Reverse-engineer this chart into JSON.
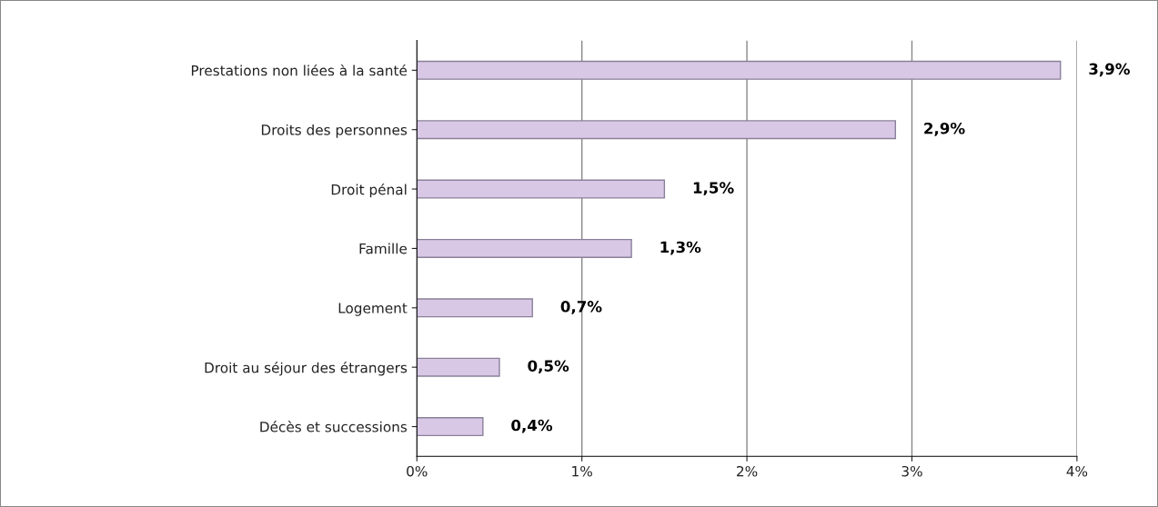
{
  "chart_data": {
    "type": "bar",
    "orientation": "horizontal",
    "categories": [
      "Prestations non liées à la santé",
      "Droits des personnes",
      "Droit pénal",
      "Famille",
      "Logement",
      "Droit au séjour des étrangers",
      "Décès et successions"
    ],
    "values": [
      3.9,
      2.9,
      1.5,
      1.3,
      0.7,
      0.5,
      0.4
    ],
    "value_labels": [
      "3,9%",
      "2,9%",
      "1,5%",
      "1,3%",
      "0,7%",
      "0,5%",
      "0,4%"
    ],
    "color": "#d8c8e6",
    "xlim": [
      0,
      4
    ],
    "xticks": [
      {
        "value": 0,
        "label": "0%"
      },
      {
        "value": 1,
        "label": "1%"
      },
      {
        "value": 2,
        "label": "2%"
      },
      {
        "value": 3,
        "label": "3%"
      },
      {
        "value": 4,
        "label": "4%"
      }
    ],
    "grid": "x"
  }
}
